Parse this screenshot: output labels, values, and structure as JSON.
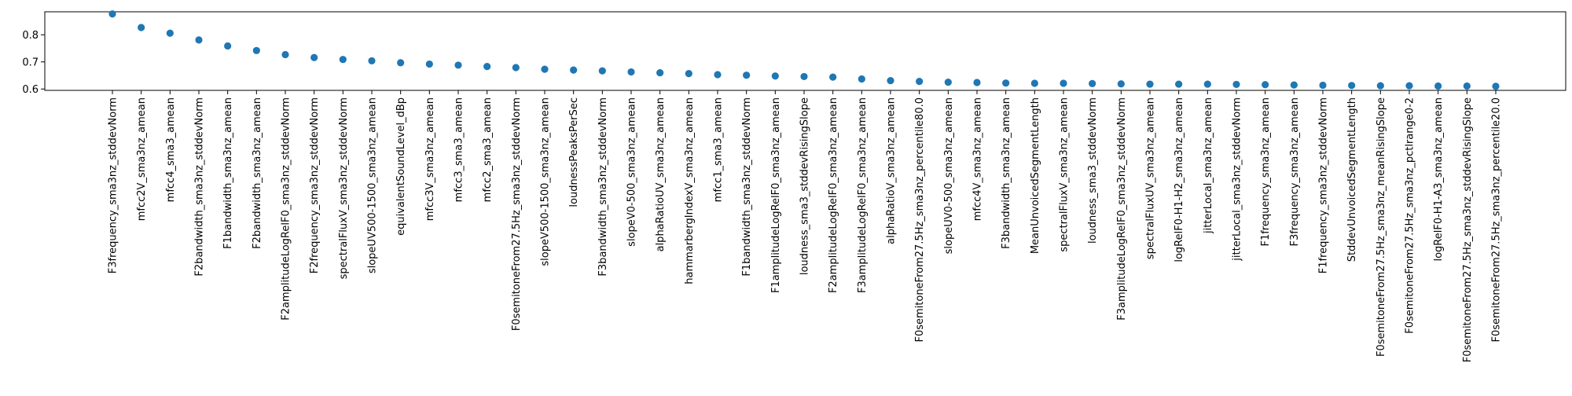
{
  "chart_data": {
    "type": "scatter",
    "title": "",
    "xlabel": "",
    "ylabel": "",
    "ylim": [
      0.595,
      0.885
    ],
    "yticks": [
      0.6,
      0.7,
      0.8
    ],
    "ytick_labels": [
      "0.6",
      "0.7",
      "0.8"
    ],
    "grid": false,
    "legend": "none",
    "point_color": "#1f77b4",
    "categories": [
      "F3frequency_sma3nz_stddevNorm",
      "mfcc2V_sma3nz_amean",
      "mfcc4_sma3_amean",
      "F2bandwidth_sma3nz_stddevNorm",
      "F1bandwidth_sma3nz_amean",
      "F2bandwidth_sma3nz_amean",
      "F2amplitudeLogRelF0_sma3nz_stddevNorm",
      "F2frequency_sma3nz_stddevNorm",
      "spectralFluxV_sma3nz_stddevNorm",
      "slopeUV500-1500_sma3nz_amean",
      "equivalentSoundLevel_dBp",
      "mfcc3V_sma3nz_amean",
      "mfcc3_sma3_amean",
      "mfcc2_sma3_amean",
      "F0semitoneFrom27.5Hz_sma3nz_stddevNorm",
      "slopeV500-1500_sma3nz_amean",
      "loudnessPeaksPerSec",
      "F3bandwidth_sma3nz_stddevNorm",
      "slopeV0-500_sma3nz_amean",
      "alphaRatioUV_sma3nz_amean",
      "hammarbergIndexV_sma3nz_amean",
      "mfcc1_sma3_amean",
      "F1bandwidth_sma3nz_stddevNorm",
      "F1amplitudeLogRelF0_sma3nz_amean",
      "loudness_sma3_stddevRisingSlope",
      "F2amplitudeLogRelF0_sma3nz_amean",
      "F3amplitudeLogRelF0_sma3nz_amean",
      "alphaRatioV_sma3nz_amean",
      "F0semitoneFrom27.5Hz_sma3nz_percentile80.0",
      "slopeUV0-500_sma3nz_amean",
      "mfcc4V_sma3nz_amean",
      "F3bandwidth_sma3nz_amean",
      "MeanUnvoicedSegmentLength",
      "spectralFluxV_sma3nz_amean",
      "loudness_sma3_stddevNorm",
      "F3amplitudeLogRelF0_sma3nz_stddevNorm",
      "spectralFluxUV_sma3nz_amean",
      "logRelF0-H1-H2_sma3nz_amean",
      "jitterLocal_sma3nz_amean",
      "jitterLocal_sma3nz_stddevNorm",
      "F1frequency_sma3nz_amean",
      "F3frequency_sma3nz_amean",
      "F1frequency_sma3nz_stddevNorm",
      "StddevUnvoicedSegmentLength",
      "F0semitoneFrom27.5Hz_sma3nz_meanRisingSlope",
      "F0semitoneFrom27.5Hz_sma3nz_pctlrange0-2",
      "logRelF0-H1-A3_sma3nz_amean",
      "F0semitoneFrom27.5Hz_sma3nz_stddevRisingSlope",
      "F0semitoneFrom27.5Hz_sma3nz_percentile20.0"
    ],
    "values": [
      0.877,
      0.827,
      0.806,
      0.781,
      0.759,
      0.742,
      0.727,
      0.716,
      0.709,
      0.704,
      0.697,
      0.692,
      0.688,
      0.683,
      0.679,
      0.673,
      0.67,
      0.667,
      0.663,
      0.66,
      0.657,
      0.653,
      0.651,
      0.648,
      0.646,
      0.644,
      0.637,
      0.631,
      0.628,
      0.625,
      0.624,
      0.622,
      0.621,
      0.621,
      0.62,
      0.619,
      0.618,
      0.618,
      0.618,
      0.617,
      0.616,
      0.615,
      0.614,
      0.613,
      0.612,
      0.612,
      0.611,
      0.611,
      0.61
    ]
  }
}
